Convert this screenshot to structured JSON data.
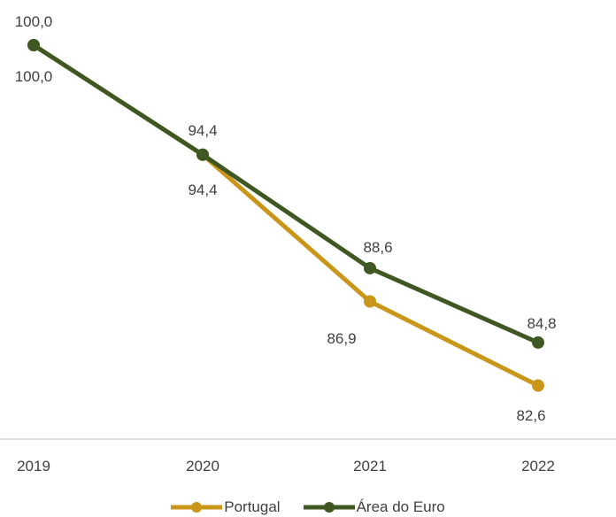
{
  "chart_data": {
    "type": "line",
    "categories": [
      "2019",
      "2020",
      "2021",
      "2022"
    ],
    "series": [
      {
        "name": "Portugal",
        "values": [
          100.0,
          94.4,
          86.9,
          82.6
        ],
        "labels": [
          "100,0",
          "94,4",
          "86,9",
          "82,6"
        ],
        "color": "#C9961A"
      },
      {
        "name": "Área do Euro",
        "values": [
          100.0,
          94.4,
          88.6,
          84.8
        ],
        "labels": [
          "100,0",
          "94,4",
          "88,6",
          "84,8"
        ],
        "color": "#3F5722"
      }
    ],
    "title": "",
    "xlabel": "",
    "ylabel": "",
    "grid": false,
    "legend": "bottom",
    "axis_color": "#D9D9D9"
  }
}
